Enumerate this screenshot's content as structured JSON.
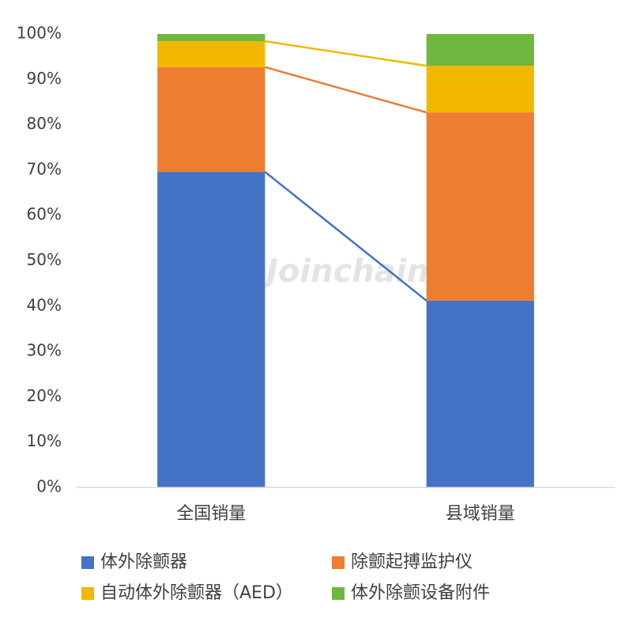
{
  "chart_data": {
    "type": "stacked_bar",
    "watermark": "Joinchain",
    "categories": [
      "全国销量",
      "县域销量"
    ],
    "series": [
      {
        "name": "体外除颤器",
        "color": "#4472c4",
        "values": [
          69.6,
          41.2
        ]
      },
      {
        "name": "除颤起搏监护仪",
        "color": "#ed7d31",
        "values": [
          23.1,
          41.5
        ]
      },
      {
        "name": "自动体外除颤器（AED）",
        "color": "#f2b800",
        "values": [
          5.7,
          10.3
        ]
      },
      {
        "name": "体外除颤设备附件",
        "color": "#70b73f",
        "values": [
          1.6,
          7.0
        ]
      }
    ],
    "ylim": [
      0,
      100
    ],
    "yticks": [
      {
        "value": 0,
        "label": "0%"
      },
      {
        "value": 10,
        "label": "10%"
      },
      {
        "value": 20,
        "label": "20%"
      },
      {
        "value": 30,
        "label": "30%"
      },
      {
        "value": 40,
        "label": "40%"
      },
      {
        "value": 50,
        "label": "50%"
      },
      {
        "value": 60,
        "label": "60%"
      },
      {
        "value": 70,
        "label": "70%"
      },
      {
        "value": 80,
        "label": "80%"
      },
      {
        "value": 90,
        "label": "90%"
      },
      {
        "value": 100,
        "label": "100%"
      }
    ],
    "grid": false,
    "connector_lines": true,
    "legend": "bottom"
  }
}
